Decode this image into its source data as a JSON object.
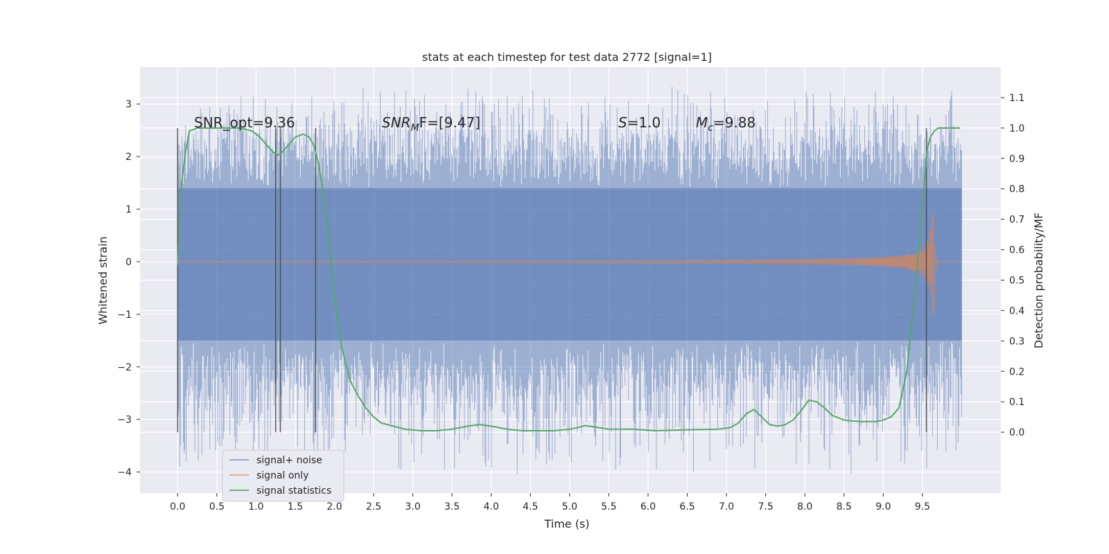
{
  "chart_data": {
    "type": "line",
    "title": "stats at each timestep for test data 2772 [signal=1]",
    "xlabel": "Time (s)",
    "ylabel": "Whitened strain",
    "y2label": "Detection probability/MF",
    "xlim": [
      -0.48,
      10.5
    ],
    "ylim": [
      -4.4,
      3.7
    ],
    "y2lim": [
      -0.2,
      1.2
    ],
    "x_ticks": [
      0.0,
      0.5,
      1.0,
      1.5,
      2.0,
      2.5,
      3.0,
      3.5,
      4.0,
      4.5,
      5.0,
      5.5,
      6.0,
      6.5,
      7.0,
      7.5,
      8.0,
      8.5,
      9.0,
      9.5
    ],
    "y_ticks": [
      -4,
      -3,
      -2,
      -1,
      0,
      1,
      2,
      3
    ],
    "y2_ticks": [
      0.0,
      0.1,
      0.2,
      0.3,
      0.4,
      0.5,
      0.6,
      0.7,
      0.8,
      0.9,
      1.0,
      1.1
    ],
    "grid": true,
    "legend_position": "lower-left",
    "colors": {
      "background": "#eaeaf2",
      "grid": "#ffffff",
      "noise": "#4c72b0",
      "signal": "#dd8452",
      "stats": "#55a868",
      "markers": "#404040"
    },
    "annotations": {
      "snr_opt": "SNR_opt=9.36",
      "snr_mf_main": "SNR",
      "snr_mf_sub": "M",
      "snr_mf_rest": "F=[9.47]",
      "s_main": "S",
      "s_rest": "=1.0",
      "mc_main": "M",
      "mc_sub": "c",
      "mc_rest": "=9.88"
    },
    "vertical_markers_x": [
      0.0,
      1.25,
      1.31,
      1.76,
      9.55
    ],
    "series": [
      {
        "name": "signal+ noise",
        "kind": "noise-band",
        "x_range": [
          0.0,
          10.0
        ],
        "core_band": [
          -1.5,
          1.4
        ],
        "spike_high": 3.35,
        "spike_low": -4.05
      },
      {
        "name": "signal only",
        "kind": "chirp",
        "x_range": [
          0.0,
          10.0
        ],
        "peak_time": 9.65,
        "peak_amplitude": 1.1
      },
      {
        "name": "signal statistics",
        "kind": "line",
        "axis": "y2",
        "x": [
          0.0,
          0.05,
          0.1,
          0.15,
          0.25,
          0.4,
          0.6,
          0.8,
          0.95,
          1.05,
          1.15,
          1.22,
          1.28,
          1.33,
          1.4,
          1.5,
          1.6,
          1.68,
          1.74,
          1.8,
          1.85,
          1.9,
          1.95,
          2.0,
          2.05,
          2.1,
          2.2,
          2.3,
          2.4,
          2.5,
          2.6,
          2.75,
          2.9,
          3.1,
          3.3,
          3.5,
          3.7,
          3.85,
          4.0,
          4.2,
          4.4,
          4.6,
          4.8,
          5.0,
          5.1,
          5.2,
          5.3,
          5.5,
          5.8,
          6.1,
          6.5,
          6.9,
          7.05,
          7.15,
          7.25,
          7.35,
          7.45,
          7.55,
          7.65,
          7.75,
          7.85,
          7.95,
          8.05,
          8.15,
          8.25,
          8.35,
          8.5,
          8.7,
          8.9,
          9.0,
          9.1,
          9.2,
          9.3,
          9.4,
          9.5,
          9.56,
          9.6,
          9.65,
          9.7,
          9.8,
          9.9,
          9.98
        ],
        "y": [
          0.55,
          0.82,
          0.92,
          0.99,
          1.0,
          1.0,
          1.0,
          1.0,
          0.99,
          0.97,
          0.94,
          0.92,
          0.91,
          0.92,
          0.94,
          0.97,
          0.98,
          0.97,
          0.94,
          0.88,
          0.8,
          0.7,
          0.58,
          0.45,
          0.35,
          0.27,
          0.17,
          0.12,
          0.08,
          0.05,
          0.03,
          0.02,
          0.01,
          0.005,
          0.005,
          0.01,
          0.02,
          0.025,
          0.02,
          0.01,
          0.005,
          0.005,
          0.005,
          0.01,
          0.015,
          0.022,
          0.018,
          0.01,
          0.01,
          0.005,
          0.008,
          0.01,
          0.015,
          0.03,
          0.06,
          0.075,
          0.05,
          0.025,
          0.02,
          0.025,
          0.04,
          0.07,
          0.105,
          0.1,
          0.08,
          0.055,
          0.04,
          0.035,
          0.035,
          0.04,
          0.05,
          0.08,
          0.2,
          0.45,
          0.75,
          0.93,
          0.97,
          0.99,
          1.0,
          1.0,
          1.0,
          1.0
        ]
      }
    ]
  }
}
